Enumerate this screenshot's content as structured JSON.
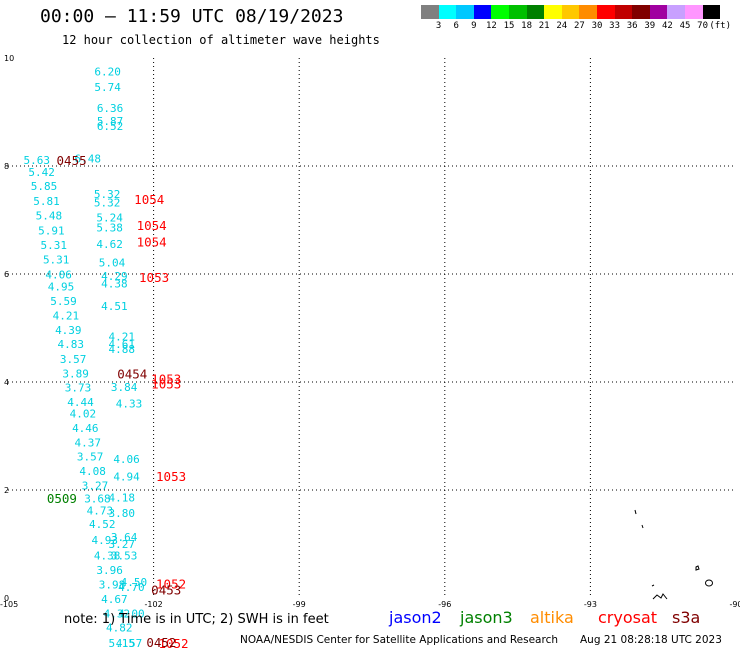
{
  "title": "00:00 — 11:59 UTC 08/19/2023",
  "subtitle": "12 hour collection of altimeter wave heights",
  "colorbar": {
    "colors": [
      "#808080",
      "#00ffff",
      "#00c8ff",
      "#0000ff",
      "#00ff00",
      "#00c000",
      "#008000",
      "#ffff00",
      "#ffc800",
      "#ff8c00",
      "#ff0000",
      "#c00000",
      "#800000",
      "#a000a0",
      "#c8a0ff",
      "#ff96ff",
      "#000000"
    ],
    "labels": [
      "3",
      "6",
      "9",
      "12",
      "15",
      "18",
      "21",
      "24",
      "27",
      "30",
      "33",
      "36",
      "39",
      "42",
      "45",
      "70",
      "(ft)"
    ]
  },
  "map": {
    "lon_range": [
      -105,
      -90
    ],
    "lat_range": [
      0,
      10
    ],
    "lon_ticks": [
      "-105",
      "-102",
      "-99",
      "-96",
      "-93",
      "-90"
    ],
    "lat_ticks": [
      "10",
      "8",
      "6",
      "4",
      "2",
      "0"
    ]
  },
  "observations": {
    "cyan_color": "#00d0e0",
    "points": [
      {
        "lon": -103.22,
        "lat": 9.75,
        "v": "6.20"
      },
      {
        "lon": -103.22,
        "lat": 9.46,
        "v": "5.74"
      },
      {
        "lon": -103.17,
        "lat": 9.07,
        "v": "6.36"
      },
      {
        "lon": -103.17,
        "lat": 8.83,
        "v": "5.87"
      },
      {
        "lon": -103.17,
        "lat": 8.74,
        "v": "6.52"
      },
      {
        "lon": -103.63,
        "lat": 8.14,
        "v": "6.48"
      },
      {
        "lon": -104.68,
        "lat": 8.11,
        "v": "5.63"
      },
      {
        "lon": -104.58,
        "lat": 7.89,
        "v": "5.42"
      },
      {
        "lon": -104.53,
        "lat": 7.63,
        "v": "5.85"
      },
      {
        "lon": -104.48,
        "lat": 7.35,
        "v": "5.81"
      },
      {
        "lon": -104.43,
        "lat": 7.08,
        "v": "5.48"
      },
      {
        "lon": -104.38,
        "lat": 6.81,
        "v": "5.91"
      },
      {
        "lon": -104.33,
        "lat": 6.54,
        "v": "5.31"
      },
      {
        "lon": -104.28,
        "lat": 6.27,
        "v": "5.31"
      },
      {
        "lon": -104.23,
        "lat": 5.99,
        "v": "4.06"
      },
      {
        "lon": -104.18,
        "lat": 5.77,
        "v": "4.95"
      },
      {
        "lon": -104.13,
        "lat": 5.5,
        "v": "5.59"
      },
      {
        "lon": -104.08,
        "lat": 5.23,
        "v": "4.21"
      },
      {
        "lon": -104.03,
        "lat": 4.96,
        "v": "4.39"
      },
      {
        "lon": -103.98,
        "lat": 4.7,
        "v": "4.83"
      },
      {
        "lon": -103.93,
        "lat": 4.43,
        "v": "3.57"
      },
      {
        "lon": -103.88,
        "lat": 4.16,
        "v": "3.89"
      },
      {
        "lon": -103.83,
        "lat": 3.9,
        "v": "3.73"
      },
      {
        "lon": -103.78,
        "lat": 3.63,
        "v": "4.44"
      },
      {
        "lon": -103.73,
        "lat": 3.42,
        "v": "4.02"
      },
      {
        "lon": -103.68,
        "lat": 3.15,
        "v": "4.46"
      },
      {
        "lon": -103.63,
        "lat": 2.88,
        "v": "4.37"
      },
      {
        "lon": -103.58,
        "lat": 2.62,
        "v": "3.57"
      },
      {
        "lon": -103.53,
        "lat": 2.35,
        "v": "4.08"
      },
      {
        "lon": -103.48,
        "lat": 2.08,
        "v": "3.27"
      },
      {
        "lon": -103.43,
        "lat": 1.84,
        "v": "3.68"
      },
      {
        "lon": -103.38,
        "lat": 1.62,
        "v": "4.73"
      },
      {
        "lon": -103.33,
        "lat": 1.37,
        "v": "4.52"
      },
      {
        "lon": -103.28,
        "lat": 1.07,
        "v": "4.93"
      },
      {
        "lon": -103.23,
        "lat": 0.79,
        "v": "4.38"
      },
      {
        "lon": -103.18,
        "lat": 0.52,
        "v": "3.96"
      },
      {
        "lon": -103.13,
        "lat": 0.25,
        "v": "3.98"
      },
      {
        "lon": -103.08,
        "lat": -0.02,
        "v": "4.67"
      },
      {
        "lon": -103.03,
        "lat": -0.29,
        "v": "4.32"
      },
      {
        "lon": -102.98,
        "lat": -0.55,
        "v": "4.82"
      },
      {
        "lon": -102.93,
        "lat": -0.83,
        "v": "5.15"
      },
      {
        "lon": -102.78,
        "lat": -0.83,
        "v": "4.57"
      },
      {
        "lon": -103.23,
        "lat": 7.48,
        "v": "5.32"
      },
      {
        "lon": -103.23,
        "lat": 7.32,
        "v": "5.32"
      },
      {
        "lon": -103.18,
        "lat": 7.05,
        "v": "5.24"
      },
      {
        "lon": -103.18,
        "lat": 6.86,
        "v": "5.38"
      },
      {
        "lon": -103.18,
        "lat": 6.56,
        "v": "4.62"
      },
      {
        "lon": -103.13,
        "lat": 6.21,
        "v": "5.04"
      },
      {
        "lon": -103.08,
        "lat": 5.96,
        "v": "4.29"
      },
      {
        "lon": -103.08,
        "lat": 5.82,
        "v": "4.38"
      },
      {
        "lon": -103.08,
        "lat": 5.41,
        "v": "4.51"
      },
      {
        "lon": -102.93,
        "lat": 4.84,
        "v": "4.21"
      },
      {
        "lon": -102.93,
        "lat": 4.7,
        "v": "4.61"
      },
      {
        "lon": -102.93,
        "lat": 4.61,
        "v": "4.88"
      },
      {
        "lon": -102.88,
        "lat": 3.91,
        "v": "3.84"
      },
      {
        "lon": -102.78,
        "lat": 3.6,
        "v": "4.33"
      },
      {
        "lon": -102.83,
        "lat": 2.57,
        "v": "4.06"
      },
      {
        "lon": -102.83,
        "lat": 2.25,
        "v": "4.94"
      },
      {
        "lon": -102.93,
        "lat": 1.86,
        "v": "4.18"
      },
      {
        "lon": -102.93,
        "lat": 1.57,
        "v": "3.80"
      },
      {
        "lon": -102.88,
        "lat": 1.13,
        "v": "3.64"
      },
      {
        "lon": -102.93,
        "lat": 1.0,
        "v": "3.27"
      },
      {
        "lon": -102.88,
        "lat": 0.79,
        "v": "3.53"
      },
      {
        "lon": -102.68,
        "lat": 0.3,
        "v": "4.50"
      },
      {
        "lon": -102.73,
        "lat": 0.2,
        "v": "4.70"
      },
      {
        "lon": -102.73,
        "lat": -0.29,
        "v": "4.00"
      }
    ],
    "passes": [
      {
        "lon": -104.0,
        "lat": 8.09,
        "t": "0455",
        "c": "#800000"
      },
      {
        "lon": -102.4,
        "lat": 7.37,
        "t": "1054",
        "c": "#ff0000"
      },
      {
        "lon": -102.35,
        "lat": 6.89,
        "t": "1054",
        "c": "#ff0000"
      },
      {
        "lon": -102.35,
        "lat": 6.58,
        "t": "1054",
        "c": "#ff0000"
      },
      {
        "lon": -102.3,
        "lat": 5.93,
        "t": "1053",
        "c": "#ff0000"
      },
      {
        "lon": -102.75,
        "lat": 4.14,
        "t": "0454",
        "c": "#800000"
      },
      {
        "lon": -102.05,
        "lat": 4.05,
        "t": "1053",
        "c": "#ff0000"
      },
      {
        "lon": -102.05,
        "lat": 3.95,
        "t": "1053",
        "c": "#ff0000"
      },
      {
        "lon": -101.95,
        "lat": 2.24,
        "t": "1053",
        "c": "#ff0000"
      },
      {
        "lon": -104.2,
        "lat": 1.83,
        "t": "0509",
        "c": "#008000"
      },
      {
        "lon": -101.95,
        "lat": 0.25,
        "t": "1052",
        "c": "#ff0000"
      },
      {
        "lon": -102.05,
        "lat": 0.14,
        "t": "0453",
        "c": "#800000"
      },
      {
        "lon": -101.9,
        "lat": -0.85,
        "t": "1052",
        "c": "#ff0000"
      },
      {
        "lon": -102.15,
        "lat": -0.83,
        "t": "0452",
        "c": "#800000"
      }
    ]
  },
  "footer": {
    "note": "note:  1) Time is in UTC;  2) SWH is in feet",
    "legend": [
      {
        "name": "jason2",
        "color": "#0000ff"
      },
      {
        "name": "jason3",
        "color": "#008000"
      },
      {
        "name": "altika",
        "color": "#ff8c00"
      },
      {
        "name": "cryosat",
        "color": "#ff0000"
      },
      {
        "name": "s3a",
        "color": "#800000"
      }
    ],
    "credit": "NOAA/NESDIS Center for Satellite Applications and Research",
    "timestamp": "Aug 21 08:28:18 UTC 2023"
  }
}
